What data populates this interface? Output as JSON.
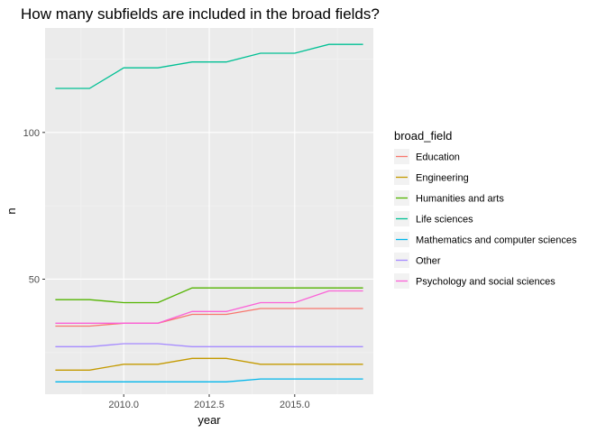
{
  "chart_data": {
    "type": "line",
    "title": "How many subfields are included in the broad fields?",
    "xlabel": "year",
    "ylabel": "n",
    "xlim": [
      2007.7,
      2017.3
    ],
    "ylim": [
      10.8,
      135.6
    ],
    "xticks": [
      2010,
      2012.5,
      2015
    ],
    "xtick_labels": [
      "2010.0",
      "2012.5",
      "2015.0"
    ],
    "yticks": [
      50,
      100
    ],
    "ytick_labels": [
      "50",
      "100"
    ],
    "grid": true,
    "legend_position": "right",
    "legend_title": "broad_field",
    "x": [
      2008,
      2009,
      2010,
      2011,
      2012,
      2013,
      2014,
      2015,
      2016,
      2017
    ],
    "series": [
      {
        "name": "Education",
        "color": "#F8766D",
        "values": [
          34,
          34,
          35,
          35,
          38,
          38,
          40,
          40,
          40,
          40
        ]
      },
      {
        "name": "Engineering",
        "color": "#C49A00",
        "values": [
          19,
          19,
          21,
          21,
          23,
          23,
          21,
          21,
          21,
          21
        ]
      },
      {
        "name": "Humanities and arts",
        "color": "#53B400",
        "values": [
          43,
          43,
          42,
          42,
          47,
          47,
          47,
          47,
          47,
          47
        ]
      },
      {
        "name": "Life sciences",
        "color": "#00C094",
        "values": [
          115,
          115,
          122,
          122,
          124,
          124,
          127,
          127,
          130,
          130
        ]
      },
      {
        "name": "Mathematics and computer sciences",
        "color": "#00B6EB",
        "values": [
          15,
          15,
          15,
          15,
          15,
          15,
          16,
          16,
          16,
          16
        ]
      },
      {
        "name": "Other",
        "color": "#A58AFF",
        "values": [
          27,
          27,
          28,
          28,
          27,
          27,
          27,
          27,
          27,
          27
        ]
      },
      {
        "name": "Psychology and social sciences",
        "color": "#FB61D7",
        "values": [
          35,
          35,
          35,
          35,
          39,
          39,
          42,
          42,
          46,
          46
        ]
      }
    ],
    "colors": {
      "panel_background": "#EBEBEB",
      "grid_major": "#FFFFFF",
      "grid_minor": "#F3F3F3",
      "legend_key_background": "#F2F2F2"
    }
  }
}
